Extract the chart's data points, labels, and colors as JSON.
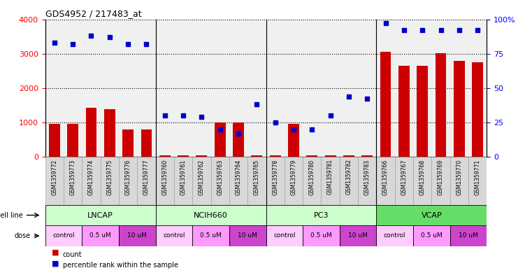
{
  "title": "GDS4952 / 217483_at",
  "samples": [
    "GSM1359772",
    "GSM1359773",
    "GSM1359774",
    "GSM1359775",
    "GSM1359776",
    "GSM1359777",
    "GSM1359760",
    "GSM1359761",
    "GSM1359762",
    "GSM1359763",
    "GSM1359764",
    "GSM1359765",
    "GSM1359778",
    "GSM1359779",
    "GSM1359780",
    "GSM1359781",
    "GSM1359782",
    "GSM1359783",
    "GSM1359766",
    "GSM1359767",
    "GSM1359768",
    "GSM1359769",
    "GSM1359770",
    "GSM1359771"
  ],
  "counts": [
    950,
    950,
    1430,
    1390,
    800,
    800,
    50,
    50,
    50,
    1000,
    1000,
    50,
    50,
    950,
    50,
    50,
    50,
    50,
    3050,
    2650,
    2650,
    3010,
    2780,
    2750
  ],
  "percentiles": [
    83,
    82,
    88,
    87,
    82,
    82,
    30,
    30,
    29,
    20,
    17,
    38,
    25,
    20,
    20,
    30,
    44,
    42,
    97,
    92,
    92,
    92,
    92,
    92
  ],
  "cell_lines": [
    {
      "name": "LNCAP",
      "start": 0,
      "end": 6,
      "color": "#ccffcc"
    },
    {
      "name": "NCIH660",
      "start": 6,
      "end": 12,
      "color": "#ccffcc"
    },
    {
      "name": "PC3",
      "start": 12,
      "end": 18,
      "color": "#ccffcc"
    },
    {
      "name": "VCAP",
      "start": 18,
      "end": 24,
      "color": "#66dd66"
    }
  ],
  "doses": [
    {
      "label": "control",
      "start": 0,
      "end": 2,
      "color": "#ffccff"
    },
    {
      "label": "0.5 uM",
      "start": 2,
      "end": 4,
      "color": "#ff99ff"
    },
    {
      "label": "10 uM",
      "start": 4,
      "end": 6,
      "color": "#cc44cc"
    },
    {
      "label": "control",
      "start": 6,
      "end": 8,
      "color": "#ffccff"
    },
    {
      "label": "0.5 uM",
      "start": 8,
      "end": 10,
      "color": "#ff99ff"
    },
    {
      "label": "10 uM",
      "start": 10,
      "end": 12,
      "color": "#cc44cc"
    },
    {
      "label": "control",
      "start": 12,
      "end": 14,
      "color": "#ffccff"
    },
    {
      "label": "0.5 uM",
      "start": 14,
      "end": 16,
      "color": "#ff99ff"
    },
    {
      "label": "10 uM",
      "start": 16,
      "end": 18,
      "color": "#cc44cc"
    },
    {
      "label": "control",
      "start": 18,
      "end": 20,
      "color": "#ffccff"
    },
    {
      "label": "0.5 uM",
      "start": 20,
      "end": 22,
      "color": "#ff99ff"
    },
    {
      "label": "10 uM",
      "start": 22,
      "end": 24,
      "color": "#cc44cc"
    }
  ],
  "bar_color": "#cc0000",
  "dot_color": "#0000cc",
  "ylim_left": [
    0,
    4000
  ],
  "ylim_right": [
    0,
    100
  ],
  "yticks_left": [
    0,
    1000,
    2000,
    3000,
    4000
  ],
  "yticks_right": [
    0,
    25,
    50,
    75,
    100
  ],
  "ytick_labels_right": [
    "0",
    "25",
    "50",
    "75",
    "100%"
  ],
  "grid_values": [
    1000,
    2000,
    3000,
    4000
  ],
  "plot_bg": "#f0f0f0",
  "background_color": "#ffffff"
}
